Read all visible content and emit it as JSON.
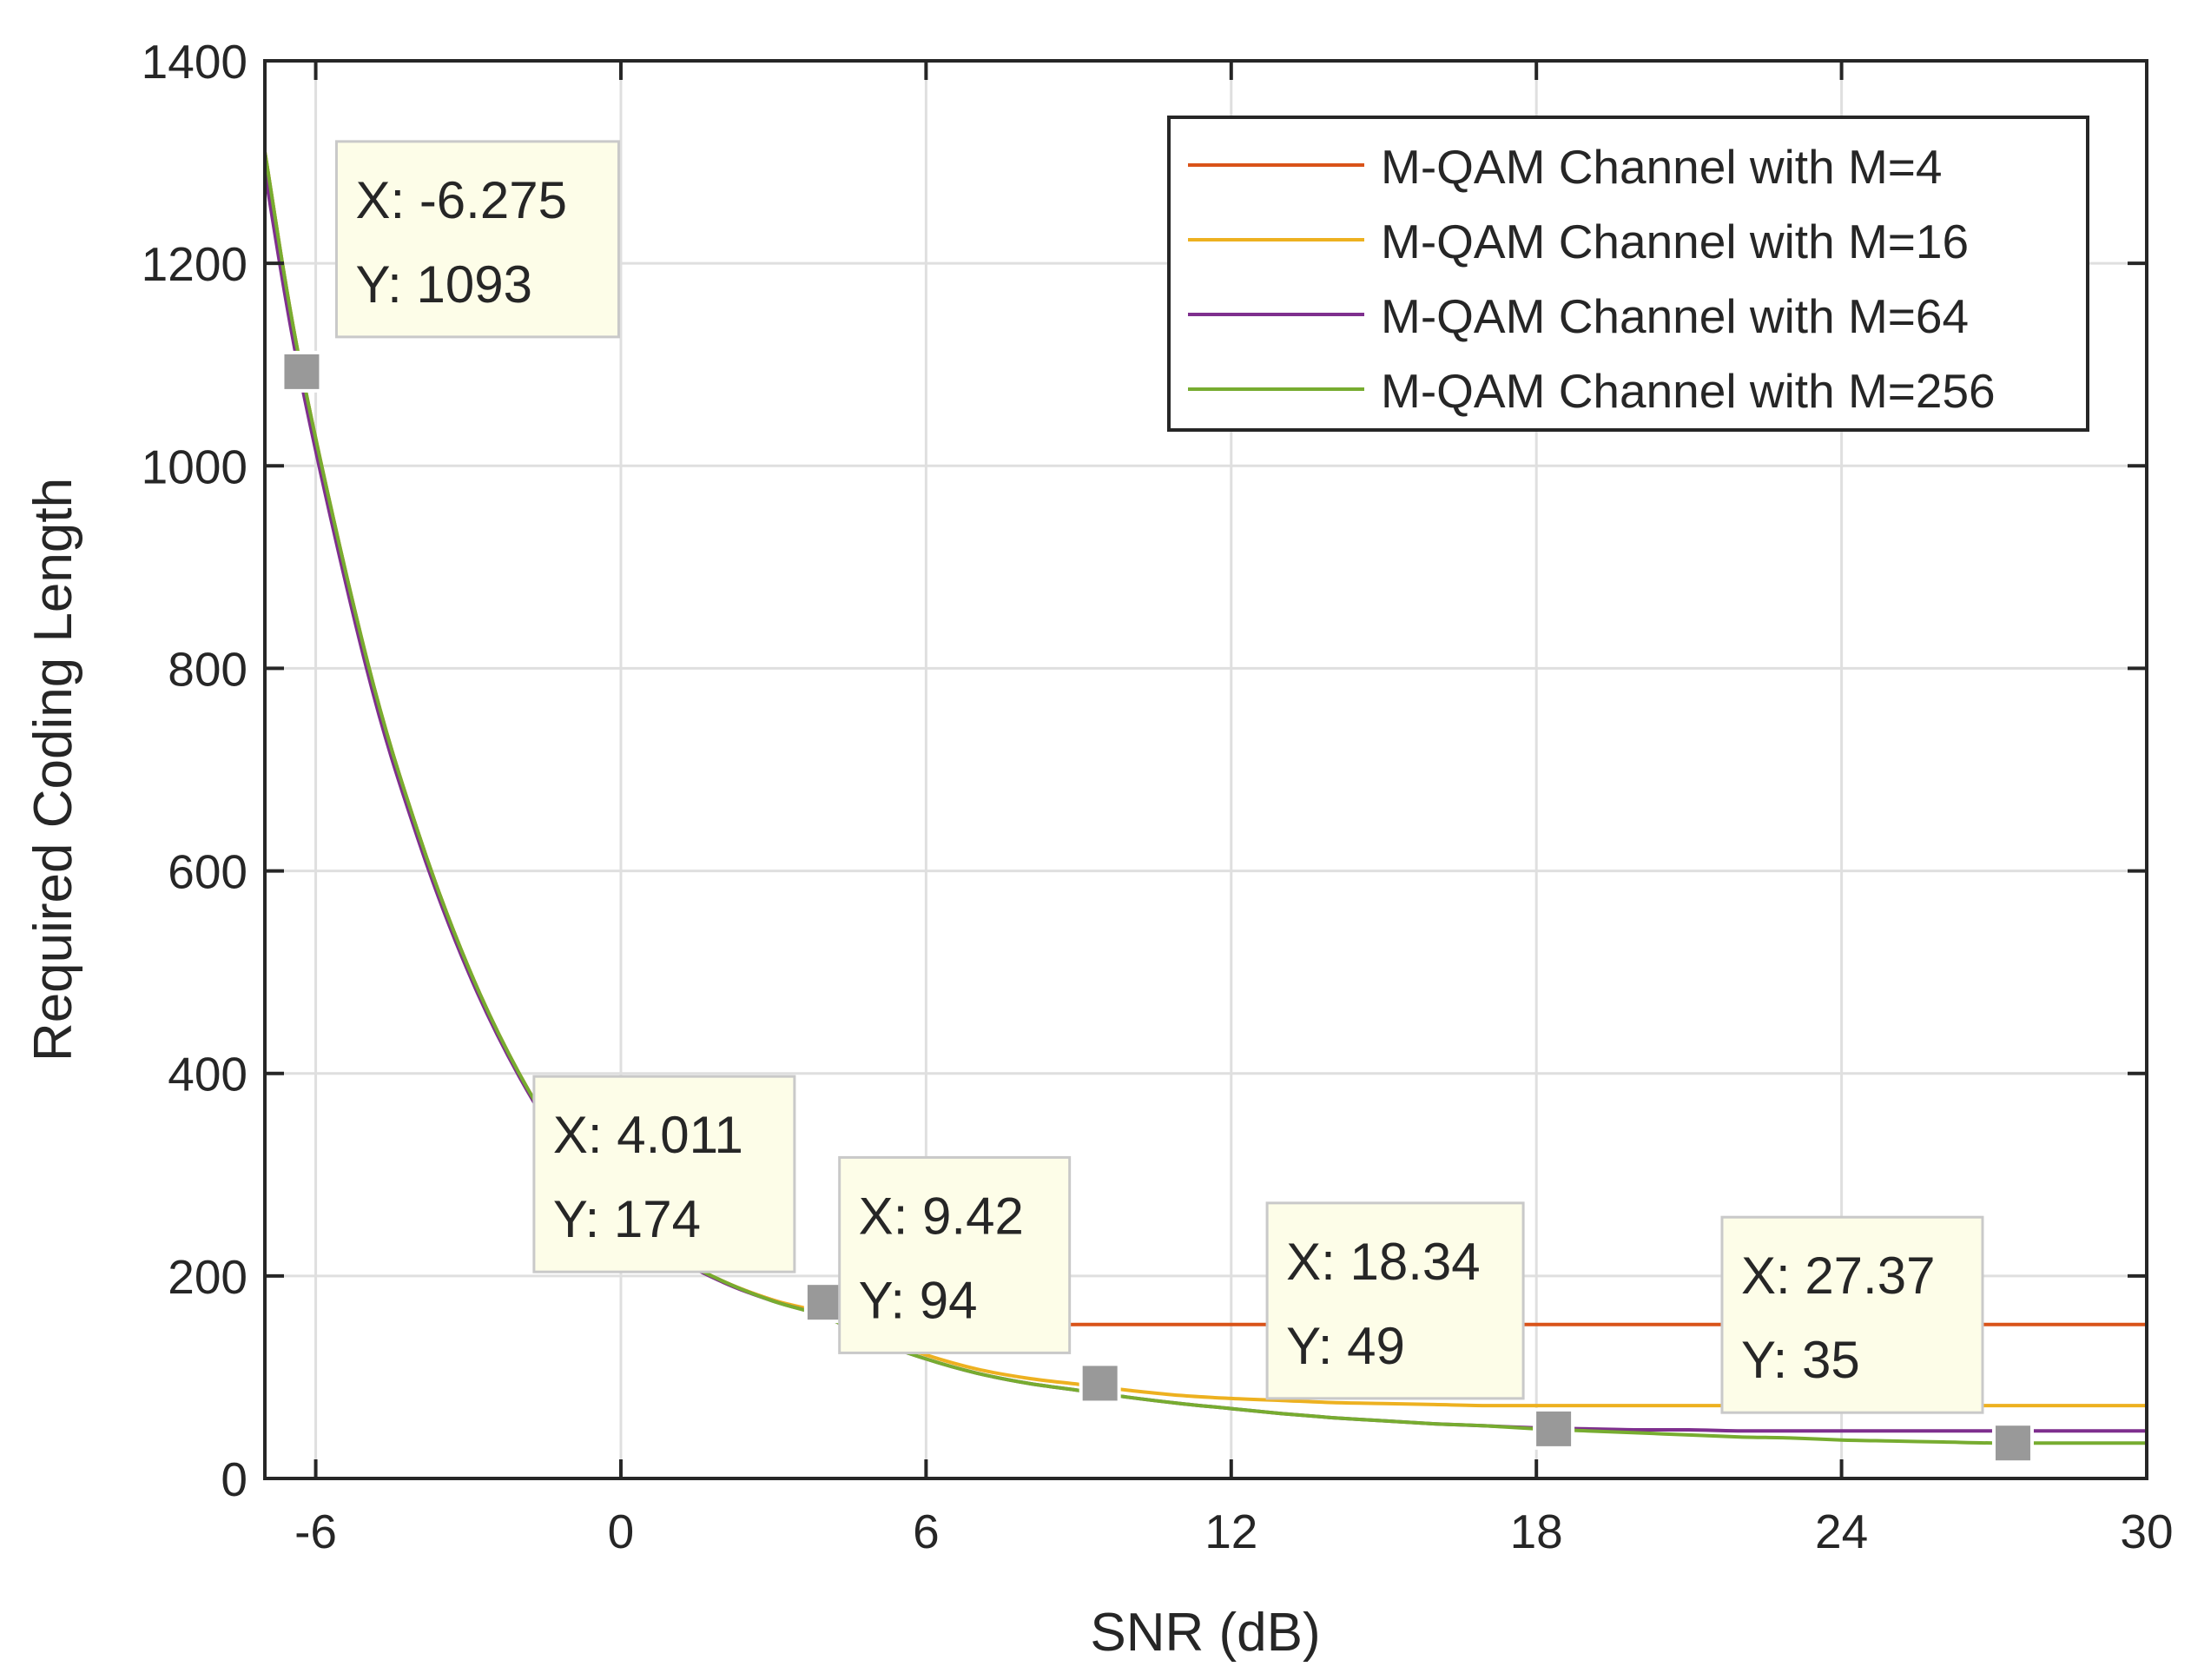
{
  "chart_data": {
    "type": "line",
    "title": "",
    "xlabel": "SNR (dB)",
    "ylabel": "Required Coding Length",
    "xlim": [
      -7,
      30
    ],
    "ylim": [
      0,
      1400
    ],
    "x_ticks": [
      -6,
      0,
      6,
      12,
      18,
      24,
      30
    ],
    "y_ticks": [
      0,
      200,
      400,
      600,
      800,
      1000,
      1200,
      1400
    ],
    "x_tick_labels": [
      "-6",
      "0",
      "6",
      "12",
      "18",
      "24",
      "30"
    ],
    "y_tick_labels": [
      "0",
      "200",
      "400",
      "600",
      "800",
      "1000",
      "1200",
      "1400"
    ],
    "grid": true,
    "legend_position": "top-right",
    "x": [
      -7,
      -6.275,
      -5,
      -4,
      -3,
      -2,
      -1,
      0,
      1,
      2,
      3,
      4,
      5,
      6,
      7,
      8,
      9,
      10,
      11,
      12,
      13,
      14,
      15,
      16,
      17,
      18,
      19,
      20,
      21,
      22,
      23,
      24,
      25,
      26,
      27,
      28,
      29,
      30
    ],
    "series": [
      {
        "name": "M-QAM Channel with M=4",
        "color": "#d95319",
        "values": [
          1310,
          1093,
          810,
          640,
          505,
          400,
          320,
          265,
          222,
          195,
          176,
          163,
          157,
          154,
          153,
          152,
          152,
          152,
          152,
          152,
          152,
          152,
          152,
          152,
          152,
          152,
          152,
          152,
          152,
          152,
          152,
          152,
          152,
          152,
          152,
          152,
          152,
          152
        ]
      },
      {
        "name": "M-QAM Channel with M=16",
        "color": "#edb120",
        "values": [
          1310,
          1093,
          810,
          640,
          505,
          400,
          320,
          265,
          222,
          195,
          176,
          163,
          140,
          122,
          108,
          99,
          93,
          87,
          82,
          79,
          77,
          75,
          74,
          73,
          72,
          72,
          72,
          72,
          72,
          72,
          72,
          72,
          72,
          72,
          72,
          72,
          72,
          72
        ]
      },
      {
        "name": "M-QAM Channel with M=64",
        "color": "#7e2f8e",
        "values": [
          1290,
          1080,
          800,
          633,
          500,
          397,
          318,
          264,
          221,
          194,
          175,
          160,
          136,
          118,
          104,
          94,
          87,
          80,
          74,
          69,
          64,
          60,
          57,
          54,
          52,
          50,
          49,
          48,
          48,
          47,
          47,
          47,
          47,
          47,
          47,
          47,
          47,
          47
        ]
      },
      {
        "name": "M-QAM Channel with M=256",
        "color": "#77ac30",
        "values": [
          1310,
          1093,
          810,
          640,
          505,
          400,
          320,
          265,
          222,
          195,
          175,
          160,
          136,
          118,
          104,
          94,
          87,
          80,
          74,
          69,
          64,
          60,
          57,
          54,
          52,
          49,
          47,
          45,
          43,
          41,
          40,
          38,
          37,
          36,
          35,
          35,
          35,
          35
        ]
      }
    ],
    "datatips": [
      {
        "x": -6.275,
        "y": 1093,
        "line1": "X: -6.275",
        "line2": "Y: 1093"
      },
      {
        "x": 4.011,
        "y": 174,
        "line1": "X: 4.011",
        "line2": "Y: 174"
      },
      {
        "x": 9.42,
        "y": 94,
        "line1": "X: 9.42",
        "line2": "Y: 94"
      },
      {
        "x": 18.34,
        "y": 49,
        "line1": "X: 18.34",
        "line2": "Y: 49"
      },
      {
        "x": 27.37,
        "y": 35,
        "line1": "X: 27.37",
        "line2": "Y: 35"
      }
    ]
  }
}
